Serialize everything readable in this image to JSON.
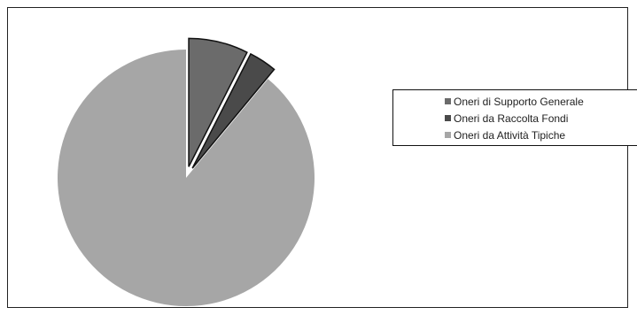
{
  "chart_data": {
    "type": "pie",
    "exploded": true,
    "slices": [
      {
        "label": "Oneri di Supporto Generale",
        "value": 7.5,
        "color": "#6b6b6b"
      },
      {
        "label": "Oneri da Raccolta Fondi",
        "value": 3.5,
        "color": "#4a4a4a"
      },
      {
        "label": "Oneri da Attività Tipiche",
        "value": 89.0,
        "color": "#a6a6a6"
      }
    ],
    "legend": {
      "placement": "right",
      "items": [
        "Oneri di Supporto Generale",
        "Oneri da Raccolta Fondi",
        "Oneri da Attività Tipiche"
      ]
    },
    "title": ""
  }
}
